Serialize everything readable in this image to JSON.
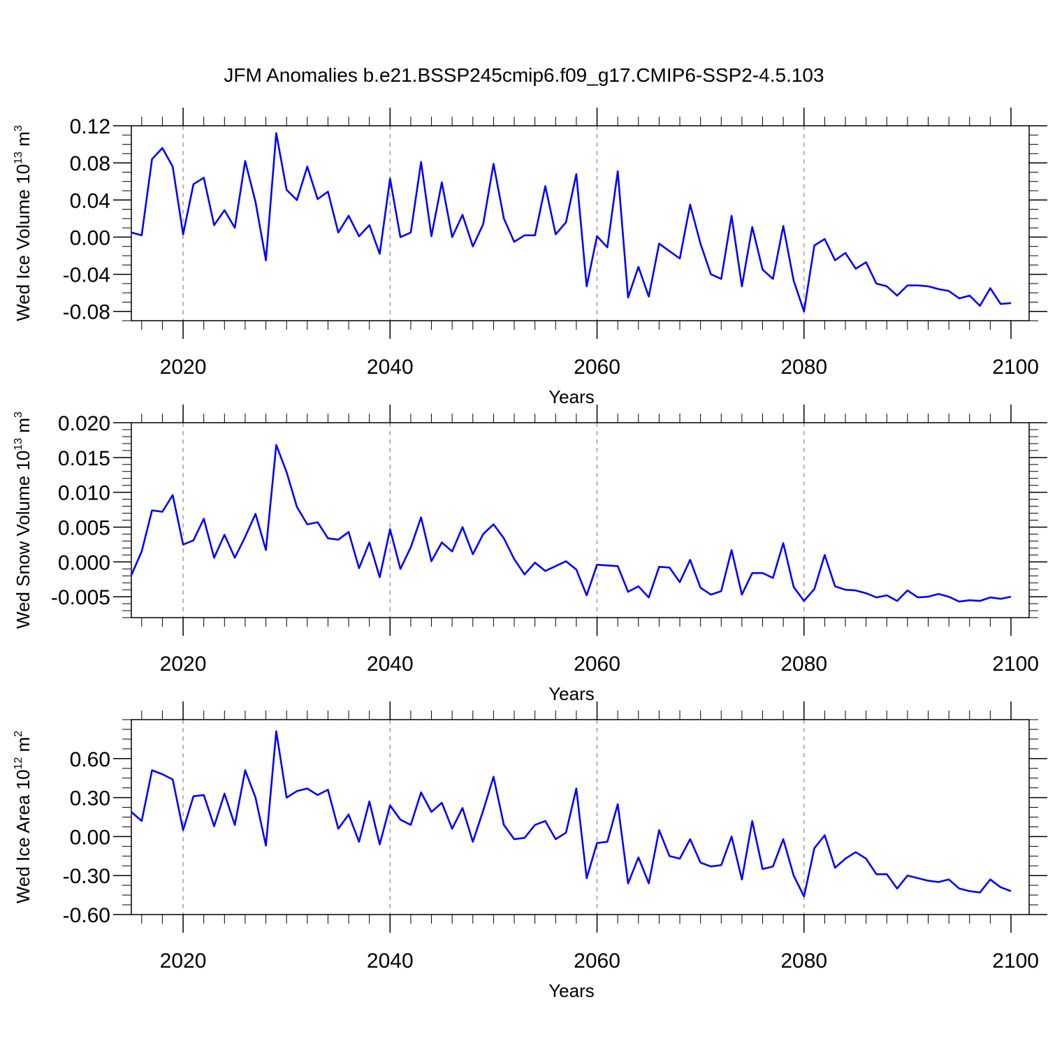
{
  "title": "JFM Anomalies b.e21.BSSP245cmip6.f09_g17.CMIP6-SSP2-4.5.103",
  "line_color": "#0000ff",
  "chart_data": [
    {
      "type": "line",
      "ylabel_text": "Wed Ice Volume 10",
      "ylabel_exp": "13",
      "ylabel_unit": "m",
      "ylabel_unit_exp": "3",
      "xlabel": "Years",
      "xlim": [
        2015,
        2100
      ],
      "ylim": [
        -0.09,
        0.12
      ],
      "yticks": [
        -0.08,
        -0.04,
        0.0,
        0.04,
        0.08,
        0.12
      ],
      "ytick_labels": [
        "-0.08",
        "-0.04",
        "0.00",
        "0.04",
        "0.08",
        "0.12"
      ],
      "yminor_step": 0.01,
      "xticks": [
        2020,
        2040,
        2060,
        2080,
        2100
      ],
      "xtick_labels": [
        "2020",
        "2040",
        "2060",
        "2080",
        "2100"
      ],
      "gridlines_x": [
        2020,
        2040,
        2060,
        2080
      ],
      "x_start": 2015,
      "values": [
        0.005,
        0.002,
        0.084,
        0.096,
        0.076,
        0.003,
        0.057,
        0.064,
        0.013,
        0.029,
        0.01,
        0.082,
        0.038,
        -0.025,
        0.112,
        0.051,
        0.04,
        0.076,
        0.041,
        0.049,
        0.005,
        0.023,
        0.001,
        0.013,
        -0.018,
        0.063,
        0.0,
        0.005,
        0.081,
        0.001,
        0.059,
        0.0,
        0.024,
        -0.01,
        0.014,
        0.079,
        0.02,
        -0.005,
        0.002,
        0.002,
        0.055,
        0.003,
        0.016,
        0.068,
        -0.053,
        0.001,
        -0.011,
        0.071,
        -0.065,
        -0.032,
        -0.064,
        -0.007,
        -0.015,
        -0.023,
        0.035,
        -0.007,
        -0.04,
        -0.045,
        0.023,
        -0.053,
        0.011,
        -0.035,
        -0.045,
        0.012,
        -0.047,
        -0.08,
        -0.009,
        -0.002,
        -0.025,
        -0.017,
        -0.034,
        -0.027,
        -0.05,
        -0.053,
        -0.063,
        -0.052,
        -0.052,
        -0.053,
        -0.056,
        -0.058,
        -0.066,
        -0.063,
        -0.074,
        -0.055,
        -0.072,
        -0.071
      ]
    },
    {
      "type": "line",
      "ylabel_text": "Wed Snow Volume 10",
      "ylabel_exp": "13",
      "ylabel_unit": "m",
      "ylabel_unit_exp": "3",
      "xlabel": "Years",
      "xlim": [
        2015,
        2100
      ],
      "ylim": [
        -0.008,
        0.02
      ],
      "yticks": [
        -0.005,
        0.0,
        0.005,
        0.01,
        0.015,
        0.02
      ],
      "ytick_labels": [
        "-0.005",
        "0.000",
        "0.005",
        "0.010",
        "0.015",
        "0.020"
      ],
      "yminor_step": 0.001,
      "xticks": [
        2020,
        2040,
        2060,
        2080,
        2100
      ],
      "xtick_labels": [
        "2020",
        "2040",
        "2060",
        "2080",
        "2100"
      ],
      "gridlines_x": [
        2020,
        2040,
        2060,
        2080
      ],
      "x_start": 2015,
      "values": [
        -0.0019,
        0.0015,
        0.0074,
        0.0072,
        0.0096,
        0.0025,
        0.0031,
        0.0062,
        0.0006,
        0.0039,
        0.0006,
        0.0036,
        0.0069,
        0.0017,
        0.0168,
        0.0129,
        0.0079,
        0.0054,
        0.0057,
        0.0034,
        0.0032,
        0.0043,
        -0.0009,
        0.0028,
        -0.0022,
        0.0047,
        -0.001,
        0.0021,
        0.0064,
        0.0001,
        0.0028,
        0.0015,
        0.005,
        0.0011,
        0.004,
        0.0054,
        0.0034,
        0.0004,
        -0.0018,
        -0.0001,
        -0.0013,
        -0.0006,
        0.0001,
        -0.0011,
        -0.0048,
        -0.0004,
        -0.0005,
        -0.0006,
        -0.0043,
        -0.0035,
        -0.0051,
        -0.0007,
        -0.0008,
        -0.0029,
        0.0003,
        -0.0037,
        -0.0047,
        -0.0042,
        0.0017,
        -0.0047,
        -0.0016,
        -0.0016,
        -0.0023,
        0.0027,
        -0.0036,
        -0.0056,
        -0.0039,
        0.001,
        -0.0035,
        -0.004,
        -0.0041,
        -0.0045,
        -0.0051,
        -0.0048,
        -0.0056,
        -0.0041,
        -0.0051,
        -0.005,
        -0.0046,
        -0.005,
        -0.0057,
        -0.0055,
        -0.0056,
        -0.0051,
        -0.0053,
        -0.005
      ]
    },
    {
      "type": "line",
      "ylabel_text": "Wed Ice Area 10",
      "ylabel_exp": "12",
      "ylabel_unit": "m",
      "ylabel_unit_exp": "2",
      "xlabel": "Years",
      "xlim": [
        2015,
        2100
      ],
      "ylim": [
        -0.6,
        0.9
      ],
      "yticks": [
        -0.6,
        -0.3,
        0.0,
        0.3,
        0.6
      ],
      "ytick_labels": [
        "-0.60",
        "-0.30",
        "0.00",
        "0.30",
        "0.60"
      ],
      "yminor_step": 0.075,
      "xticks": [
        2020,
        2040,
        2060,
        2080,
        2100
      ],
      "xtick_labels": [
        "2020",
        "2040",
        "2060",
        "2080",
        "2100"
      ],
      "gridlines_x": [
        2020,
        2040,
        2060,
        2080
      ],
      "x_start": 2015,
      "values": [
        0.19,
        0.12,
        0.51,
        0.48,
        0.44,
        0.05,
        0.31,
        0.32,
        0.08,
        0.33,
        0.09,
        0.51,
        0.3,
        -0.07,
        0.81,
        0.3,
        0.35,
        0.37,
        0.32,
        0.36,
        0.06,
        0.17,
        -0.04,
        0.27,
        -0.06,
        0.24,
        0.13,
        0.09,
        0.34,
        0.19,
        0.26,
        0.06,
        0.22,
        -0.04,
        0.2,
        0.46,
        0.09,
        -0.02,
        -0.01,
        0.09,
        0.12,
        -0.02,
        0.03,
        0.37,
        -0.32,
        -0.05,
        -0.04,
        0.25,
        -0.36,
        -0.16,
        -0.36,
        0.05,
        -0.15,
        -0.17,
        -0.02,
        -0.2,
        -0.23,
        -0.22,
        0.0,
        -0.33,
        0.12,
        -0.25,
        -0.23,
        -0.02,
        -0.3,
        -0.46,
        -0.09,
        0.01,
        -0.24,
        -0.17,
        -0.12,
        -0.17,
        -0.29,
        -0.29,
        -0.4,
        -0.3,
        -0.32,
        -0.34,
        -0.35,
        -0.33,
        -0.4,
        -0.42,
        -0.43,
        -0.33,
        -0.39,
        -0.42
      ]
    }
  ]
}
